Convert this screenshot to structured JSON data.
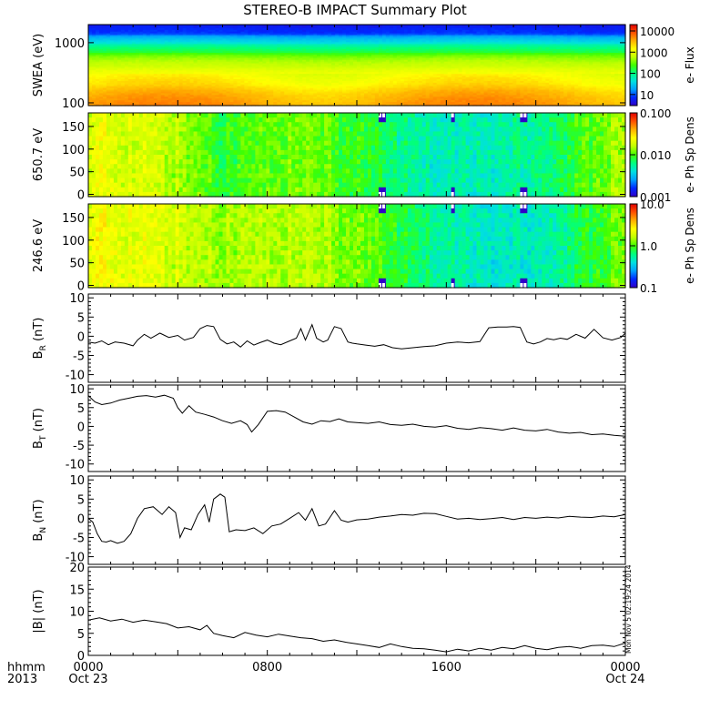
{
  "title": "STEREO-B IMPACT Summary Plot",
  "time_axis": {
    "row_label_top": "hhmm",
    "row_label_bottom": "2013",
    "ticks": [
      {
        "hour": 0,
        "top": "0000",
        "bottom": "Oct 23"
      },
      {
        "hour": 8,
        "top": "0800",
        "bottom": ""
      },
      {
        "hour": 16,
        "top": "1600",
        "bottom": ""
      },
      {
        "hour": 24,
        "top": "0000",
        "bottom": "Oct 24"
      }
    ],
    "range_hours": [
      0,
      24
    ]
  },
  "timestamp": "Mon Nov  5 02:19:24 2014",
  "colors": {
    "spectrogram_scale": [
      "#3000c8",
      "#0028ff",
      "#00a0ff",
      "#00e0e0",
      "#00ff80",
      "#40ff00",
      "#c0ff00",
      "#ffff00",
      "#ffb000",
      "#ff5000",
      "#e00000"
    ],
    "trace": "#000000",
    "data_gap": "#ffffff"
  },
  "chart_data": [
    {
      "type": "heatmap",
      "ylabel": "SWEA (eV)",
      "y_scale": "log",
      "ylim": [
        90,
        2000
      ],
      "y_ticks": [
        {
          "value": 100,
          "label": "100"
        },
        {
          "value": 1000,
          "label": "1000"
        }
      ],
      "colorbar": {
        "label": "e- Flux",
        "scale": "log",
        "range": [
          3,
          20000
        ],
        "ticks": [
          {
            "value": 10,
            "label": "10"
          },
          {
            "value": 100,
            "label": "100"
          },
          {
            "value": 1000,
            "label": "1000"
          },
          {
            "value": 10000,
            "label": "10000"
          }
        ]
      },
      "flux_profile": [
        [
          100,
          4000
        ],
        [
          200,
          1800
        ],
        [
          400,
          700
        ],
        [
          700,
          150
        ],
        [
          1000,
          40
        ],
        [
          1400,
          8
        ],
        [
          2000,
          5
        ]
      ]
    },
    {
      "type": "heatmap",
      "ylabel": "650.7 eV",
      "y_axis_quantity": "pitch angle",
      "ylim": [
        -5,
        180
      ],
      "y_ticks": [
        {
          "value": 0,
          "label": "0"
        },
        {
          "value": 50,
          "label": "50"
        },
        {
          "value": 100,
          "label": "100"
        },
        {
          "value": 150,
          "label": "150"
        }
      ],
      "colorbar": {
        "label": "e- Ph Sp Dens",
        "scale": "log",
        "range": [
          0.001,
          0.1
        ],
        "ticks": [
          {
            "value": 0.001,
            "label": "0.001"
          },
          {
            "value": 0.01,
            "label": "0.010"
          },
          {
            "value": 0.1,
            "label": "0.100"
          }
        ]
      },
      "data_gaps_hours": [
        13.1,
        16.3,
        19.5
      ],
      "density_vs_time": [
        [
          0,
          0.022
        ],
        [
          3,
          0.018
        ],
        [
          6,
          0.009
        ],
        [
          9,
          0.012
        ],
        [
          12,
          0.009
        ],
        [
          14,
          0.006
        ],
        [
          16,
          0.005
        ],
        [
          18,
          0.005
        ],
        [
          21,
          0.007
        ],
        [
          24,
          0.015
        ]
      ]
    },
    {
      "type": "heatmap",
      "ylabel": "246.6 eV",
      "y_axis_quantity": "pitch angle",
      "ylim": [
        -5,
        180
      ],
      "y_ticks": [
        {
          "value": 0,
          "label": "0"
        },
        {
          "value": 50,
          "label": "50"
        },
        {
          "value": 100,
          "label": "100"
        },
        {
          "value": 150,
          "label": "150"
        }
      ],
      "colorbar": {
        "label": "e- Ph Sp Dens",
        "scale": "log",
        "range": [
          0.1,
          10
        ],
        "ticks": [
          {
            "value": 0.1,
            "label": "0.1"
          },
          {
            "value": 1,
            "label": "1.0"
          },
          {
            "value": 10,
            "label": "10.0"
          }
        ]
      },
      "data_gaps_hours": [
        13.1,
        16.3,
        19.5
      ],
      "density_vs_time": [
        [
          0,
          2.4
        ],
        [
          3,
          2.0
        ],
        [
          6,
          1.5
        ],
        [
          9,
          1.6
        ],
        [
          12,
          1.2
        ],
        [
          14,
          0.8
        ],
        [
          16,
          0.55
        ],
        [
          18,
          0.45
        ],
        [
          21,
          0.55
        ],
        [
          24,
          1.2
        ]
      ]
    },
    {
      "type": "line",
      "ylabel": "BR (nT)",
      "ylabel_main": "B",
      "ylabel_sub": "R",
      "ylabel_unit": " (nT)",
      "ylim": [
        -12,
        11
      ],
      "y_ticks": [
        -10,
        -5,
        0,
        5,
        10
      ],
      "x": [
        0,
        0.3,
        0.6,
        0.9,
        1.2,
        1.6,
        2.0,
        2.2,
        2.5,
        2.8,
        3.2,
        3.6,
        4.0,
        4.3,
        4.7,
        5.0,
        5.3,
        5.6,
        5.9,
        6.2,
        6.5,
        6.8,
        7.1,
        7.4,
        7.7,
        8.0,
        8.3,
        8.6,
        9.0,
        9.3,
        9.5,
        9.7,
        10.0,
        10.2,
        10.5,
        10.7,
        11.0,
        11.3,
        11.6,
        11.8,
        12.0,
        12.4,
        12.8,
        13.2,
        13.6,
        14.0,
        14.5,
        15.0,
        15.5,
        16.0,
        16.5,
        17.0,
        17.5,
        17.9,
        18.3,
        18.7,
        19.0,
        19.3,
        19.6,
        19.9,
        20.2,
        20.5,
        20.8,
        21.1,
        21.4,
        21.8,
        22.2,
        22.6,
        23.0,
        23.4,
        23.8,
        24.0
      ],
      "y": [
        -1.5,
        -1.8,
        -1.2,
        -2.2,
        -1.5,
        -1.8,
        -2.5,
        -1.0,
        0.5,
        -0.5,
        0.8,
        -0.3,
        0.2,
        -1.0,
        -0.3,
        2.0,
        2.8,
        2.5,
        -0.8,
        -2.0,
        -1.5,
        -2.8,
        -1.2,
        -2.3,
        -1.6,
        -1.0,
        -1.8,
        -2.2,
        -1.2,
        -0.5,
        2.0,
        -1.0,
        3.0,
        -0.5,
        -1.5,
        -1.0,
        2.5,
        2.0,
        -1.5,
        -1.8,
        -2.0,
        -2.3,
        -2.6,
        -2.2,
        -3.0,
        -3.3,
        -3.0,
        -2.7,
        -2.5,
        -1.8,
        -1.5,
        -1.7,
        -1.4,
        2.2,
        2.4,
        2.4,
        2.5,
        2.3,
        -1.5,
        -2.0,
        -1.5,
        -0.6,
        -0.9,
        -0.5,
        -0.8,
        0.5,
        -0.5,
        1.8,
        -0.4,
        -1.0,
        -0.3,
        0.8
      ]
    },
    {
      "type": "line",
      "ylabel": "BT (nT)",
      "ylabel_main": "B",
      "ylabel_sub": "T",
      "ylabel_unit": " (nT)",
      "ylim": [
        -12,
        11
      ],
      "y_ticks": [
        -10,
        -5,
        0,
        5,
        10
      ],
      "x": [
        0,
        0.3,
        0.6,
        1.0,
        1.4,
        1.8,
        2.2,
        2.6,
        3.0,
        3.4,
        3.8,
        4.0,
        4.2,
        4.5,
        4.8,
        5.2,
        5.6,
        6.0,
        6.4,
        6.8,
        7.1,
        7.3,
        7.6,
        8.0,
        8.4,
        8.8,
        9.2,
        9.6,
        10.0,
        10.4,
        10.8,
        11.2,
        11.6,
        12.0,
        12.5,
        13.0,
        13.5,
        14.0,
        14.5,
        15.0,
        15.5,
        16.0,
        16.5,
        17.0,
        17.5,
        18.0,
        18.5,
        19.0,
        19.5,
        20.0,
        20.5,
        21.0,
        21.5,
        22.0,
        22.5,
        23.0,
        23.5,
        24.0
      ],
      "y": [
        8.2,
        6.5,
        5.8,
        6.2,
        7.0,
        7.5,
        8.0,
        8.2,
        7.8,
        8.3,
        7.5,
        5.0,
        3.5,
        5.5,
        3.8,
        3.2,
        2.5,
        1.5,
        0.8,
        1.5,
        0.5,
        -1.5,
        0.5,
        4.0,
        4.2,
        3.8,
        2.5,
        1.2,
        0.6,
        1.5,
        1.3,
        2.0,
        1.2,
        1.0,
        0.8,
        1.2,
        0.5,
        0.3,
        0.6,
        0.0,
        -0.2,
        0.2,
        -0.5,
        -0.8,
        -0.3,
        -0.6,
        -1.0,
        -0.4,
        -1.0,
        -1.2,
        -0.8,
        -1.5,
        -1.8,
        -1.6,
        -2.2,
        -2.0,
        -2.4,
        -2.6
      ]
    },
    {
      "type": "line",
      "ylabel": "BN (nT)",
      "ylabel_main": "B",
      "ylabel_sub": "N",
      "ylabel_unit": " (nT)",
      "ylim": [
        -12,
        11
      ],
      "y_ticks": [
        -10,
        -5,
        0,
        5,
        10
      ],
      "x": [
        0,
        0.2,
        0.4,
        0.6,
        0.8,
        1.0,
        1.3,
        1.6,
        1.9,
        2.2,
        2.5,
        2.9,
        3.3,
        3.6,
        3.9,
        4.1,
        4.3,
        4.6,
        4.9,
        5.2,
        5.4,
        5.6,
        5.9,
        6.1,
        6.3,
        6.6,
        7.0,
        7.4,
        7.8,
        8.2,
        8.6,
        9.0,
        9.4,
        9.7,
        10.0,
        10.3,
        10.6,
        11.0,
        11.3,
        11.6,
        12.0,
        12.5,
        13.0,
        13.5,
        14.0,
        14.5,
        15.0,
        15.5,
        16.0,
        16.5,
        17.0,
        17.5,
        18.0,
        18.5,
        19.0,
        19.5,
        20.0,
        20.5,
        21.0,
        21.5,
        22.0,
        22.5,
        23.0,
        23.5,
        24.0
      ],
      "y": [
        0.0,
        -1.0,
        -4.0,
        -6.0,
        -6.2,
        -5.8,
        -6.5,
        -6.0,
        -4.0,
        0.0,
        2.5,
        3.0,
        1.0,
        3.0,
        1.5,
        -5.0,
        -2.5,
        -3.0,
        1.0,
        3.5,
        -1.0,
        5.0,
        6.3,
        5.5,
        -3.5,
        -3.0,
        -3.2,
        -2.5,
        -4.0,
        -2.0,
        -1.5,
        0.0,
        1.5,
        -0.5,
        2.5,
        -2.0,
        -1.5,
        2.0,
        -0.5,
        -1.0,
        -0.4,
        -0.2,
        0.3,
        0.6,
        1.0,
        0.8,
        1.3,
        1.2,
        0.5,
        -0.2,
        0.0,
        -0.3,
        -0.1,
        0.2,
        -0.3,
        0.2,
        0.0,
        0.3,
        0.1,
        0.5,
        0.3,
        0.2,
        0.6,
        0.4,
        1.0
      ]
    },
    {
      "type": "line",
      "ylabel": "|B| (nT)",
      "ylabel_main": "|B|",
      "ylabel_sub": "",
      "ylabel_unit": " (nT)",
      "ylim": [
        0,
        20
      ],
      "y_ticks": [
        0,
        5,
        10,
        15,
        20
      ],
      "x": [
        0,
        0.5,
        1.0,
        1.5,
        2.0,
        2.5,
        3.0,
        3.5,
        4.0,
        4.5,
        5.0,
        5.3,
        5.6,
        6.0,
        6.5,
        7.0,
        7.5,
        8.0,
        8.5,
        9.0,
        9.5,
        10.0,
        10.5,
        11.0,
        11.5,
        12.0,
        12.5,
        13.0,
        13.5,
        14.0,
        14.5,
        15.0,
        15.5,
        16.0,
        16.5,
        17.0,
        17.5,
        18.0,
        18.5,
        19.0,
        19.5,
        20.0,
        20.5,
        21.0,
        21.5,
        22.0,
        22.5,
        23.0,
        23.5,
        24.0
      ],
      "y": [
        8.0,
        8.5,
        7.8,
        8.2,
        7.5,
        8.0,
        7.6,
        7.2,
        6.2,
        6.5,
        5.8,
        6.8,
        5.0,
        4.5,
        4.0,
        5.2,
        4.6,
        4.2,
        4.8,
        4.4,
        4.0,
        3.8,
        3.2,
        3.5,
        3.0,
        2.6,
        2.2,
        1.8,
        2.6,
        2.0,
        1.6,
        1.5,
        1.2,
        0.8,
        1.4,
        1.0,
        1.6,
        1.2,
        1.8,
        1.5,
        2.2,
        1.6,
        1.3,
        1.8,
        2.0,
        1.6,
        2.2,
        2.3,
        2.0,
        2.8
      ]
    }
  ]
}
